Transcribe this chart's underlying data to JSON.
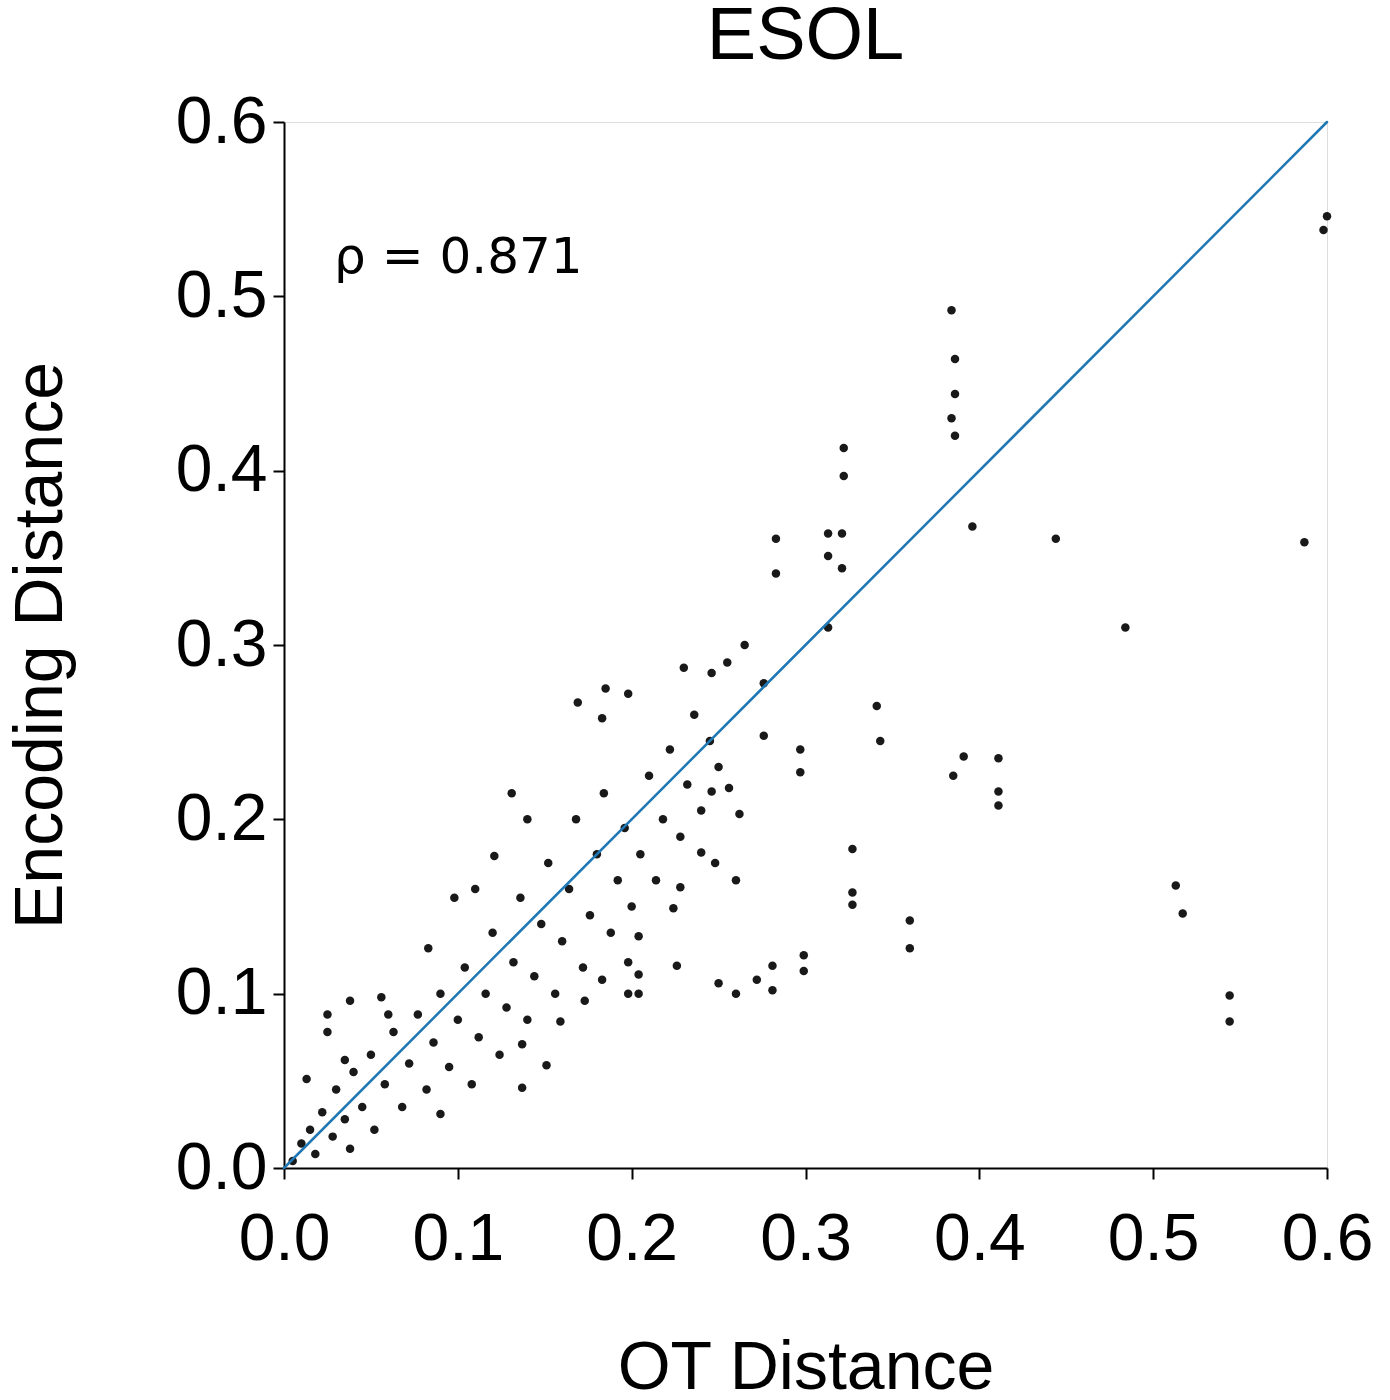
{
  "chart_data": {
    "type": "scatter",
    "title": "ESOL",
    "xlabel": "OT Distance",
    "ylabel": "Encoding Distance",
    "xlim": [
      0,
      0.6
    ],
    "ylim": [
      0,
      0.6
    ],
    "xticks": [
      {
        "value": 0,
        "label": "0.0"
      },
      0.1,
      0.2,
      0.3,
      0.4,
      0.5,
      0.6
    ],
    "yticks": [
      {
        "value": 0,
        "label": "0.0"
      },
      0.1,
      0.2,
      0.3,
      0.4,
      0.5,
      0.6
    ],
    "grid": false,
    "annotations": [
      "ρ = 0.871"
    ],
    "series": [
      {
        "color": "#000000",
        "marker": "circle",
        "x": [
          0.598,
          0.6,
          0.384,
          0.386,
          0.386,
          0.384,
          0.386,
          0.396,
          0.444,
          0.587,
          0.484,
          0.322,
          0.322,
          0.313,
          0.321,
          0.313,
          0.321,
          0.283,
          0.283,
          0.313,
          0.265,
          0.255,
          0.297,
          0.297,
          0.341,
          0.343,
          0.385,
          0.391,
          0.411,
          0.411,
          0.411,
          0.327,
          0.327,
          0.327,
          0.36,
          0.36,
          0.299,
          0.299,
          0.513,
          0.517,
          0.544,
          0.544,
          0.23,
          0.246,
          0.276,
          0.276,
          0.169,
          0.185,
          0.198,
          0.183,
          0.131,
          0.262,
          0.26,
          0.248,
          0.226,
          0.25,
          0.26,
          0.272,
          0.281,
          0.281,
          0.204,
          0.198,
          0.173,
          0.159,
          0.137,
          0.151,
          0.137,
          0.09,
          0.038,
          0.056,
          0.025,
          0.025,
          0.013,
          0.038,
          0.083,
          0.121,
          0.098,
          0.228,
          0.224,
          0.204,
          0.204,
          0.198,
          0.183,
          0.256,
          0.24,
          0.246,
          0.005,
          0.01,
          0.015,
          0.018,
          0.022,
          0.028,
          0.03,
          0.035,
          0.04,
          0.045,
          0.05,
          0.052,
          0.058,
          0.063,
          0.068,
          0.072,
          0.077,
          0.082,
          0.086,
          0.09,
          0.095,
          0.1,
          0.104,
          0.108,
          0.112,
          0.116,
          0.12,
          0.124,
          0.128,
          0.132,
          0.136,
          0.14,
          0.144,
          0.148,
          0.152,
          0.156,
          0.16,
          0.164,
          0.168,
          0.172,
          0.176,
          0.18,
          0.184,
          0.188,
          0.192,
          0.196,
          0.2,
          0.205,
          0.21,
          0.214,
          0.218,
          0.222,
          0.228,
          0.232,
          0.236,
          0.24,
          0.245,
          0.25,
          0.06,
          0.035,
          0.14,
          0.11
        ],
        "values": [
          0.538,
          0.546,
          0.492,
          0.464,
          0.444,
          0.43,
          0.42,
          0.368,
          0.361,
          0.359,
          0.31,
          0.413,
          0.397,
          0.364,
          0.364,
          0.351,
          0.344,
          0.361,
          0.341,
          0.31,
          0.3,
          0.29,
          0.24,
          0.227,
          0.265,
          0.245,
          0.225,
          0.236,
          0.235,
          0.216,
          0.208,
          0.183,
          0.158,
          0.151,
          0.142,
          0.126,
          0.122,
          0.113,
          0.162,
          0.146,
          0.099,
          0.084,
          0.287,
          0.284,
          0.278,
          0.248,
          0.267,
          0.275,
          0.272,
          0.258,
          0.215,
          0.203,
          0.165,
          0.175,
          0.116,
          0.106,
          0.1,
          0.108,
          0.116,
          0.102,
          0.1,
          0.1,
          0.096,
          0.084,
          0.046,
          0.059,
          0.071,
          0.031,
          0.096,
          0.098,
          0.088,
          0.078,
          0.051,
          0.011,
          0.126,
          0.179,
          0.155,
          0.161,
          0.149,
          0.133,
          0.111,
          0.118,
          0.108,
          0.218,
          0.181,
          0.216,
          0.004,
          0.014,
          0.022,
          0.008,
          0.032,
          0.018,
          0.045,
          0.028,
          0.055,
          0.035,
          0.065,
          0.022,
          0.048,
          0.078,
          0.035,
          0.06,
          0.088,
          0.045,
          0.072,
          0.1,
          0.058,
          0.085,
          0.115,
          0.048,
          0.075,
          0.1,
          0.135,
          0.065,
          0.092,
          0.118,
          0.155,
          0.085,
          0.11,
          0.14,
          0.175,
          0.1,
          0.13,
          0.16,
          0.2,
          0.115,
          0.145,
          0.18,
          0.215,
          0.135,
          0.165,
          0.195,
          0.15,
          0.18,
          0.225,
          0.165,
          0.2,
          0.24,
          0.19,
          0.22,
          0.26,
          0.205,
          0.245,
          0.23,
          0.088,
          0.062,
          0.2,
          0.16
        ]
      },
      {
        "type": "line",
        "color": "#1f77b4",
        "x": [
          0,
          0.6
        ],
        "values": [
          0,
          0.6
        ]
      }
    ]
  }
}
